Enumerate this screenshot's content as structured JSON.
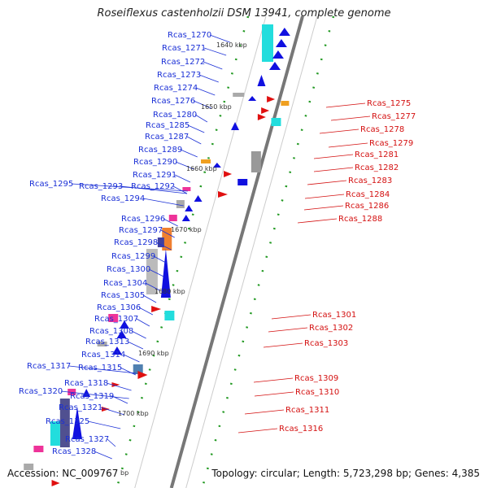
{
  "title": "Roseiflexus castenholzii DSM 13941, complete genome",
  "accession": "Accession: NC_009767",
  "footer_info": "Topology: circular; Length: 5,723,298 bp; Genes: 4,385",
  "kbp_marks": [
    "1640 kbp",
    "1650 kbp",
    "1660 kbp",
    "1670 kbp",
    "1680 kbp",
    "1690 kbp",
    "1700 kbp",
    "bp"
  ],
  "left_genes": [
    "Rcas_1270",
    "Rcas_1271",
    "Rcas_1272",
    "Rcas_1273",
    "Rcas_1274",
    "Rcas_1276",
    "Rcas_1280",
    "Rcas_1285",
    "Rcas_1287",
    "Rcas_1289",
    "Rcas_1290",
    "Rcas_1291",
    "Rcas_1292",
    "Rcas_1295",
    "Rcas_1293",
    "Rcas_1294",
    "Rcas_1296",
    "Rcas_1297",
    "Rcas_1298",
    "Rcas_1299",
    "Rcas_1300",
    "Rcas_1304",
    "Rcas_1305",
    "Rcas_1306",
    "Rcas_1307",
    "Rcas_1308",
    "Rcas_1313",
    "Rcas_1314",
    "Rcas_1317",
    "Rcas_1315",
    "Rcas_1318",
    "Rcas_1320",
    "Rcas_1319",
    "Rcas_1321",
    "Rcas_1325",
    "Rcas_1327",
    "Rcas_1328"
  ],
  "right_genes": [
    "Rcas_1275",
    "Rcas_1277",
    "Rcas_1278",
    "Rcas_1279",
    "Rcas_1281",
    "Rcas_1282",
    "Rcas_1283",
    "Rcas_1284",
    "Rcas_1286",
    "Rcas_1288",
    "Rcas_1301",
    "Rcas_1302",
    "Rcas_1303",
    "Rcas_1309",
    "Rcas_1310",
    "Rcas_1311",
    "Rcas_1316"
  ],
  "colors": {
    "forward": "#1010e0",
    "reverse": "#e01010",
    "backbone": "#777777",
    "tick": "#229922",
    "cyan": "#22dddd",
    "magenta": "#ee3399",
    "gray": "#aaaaaa"
  }
}
